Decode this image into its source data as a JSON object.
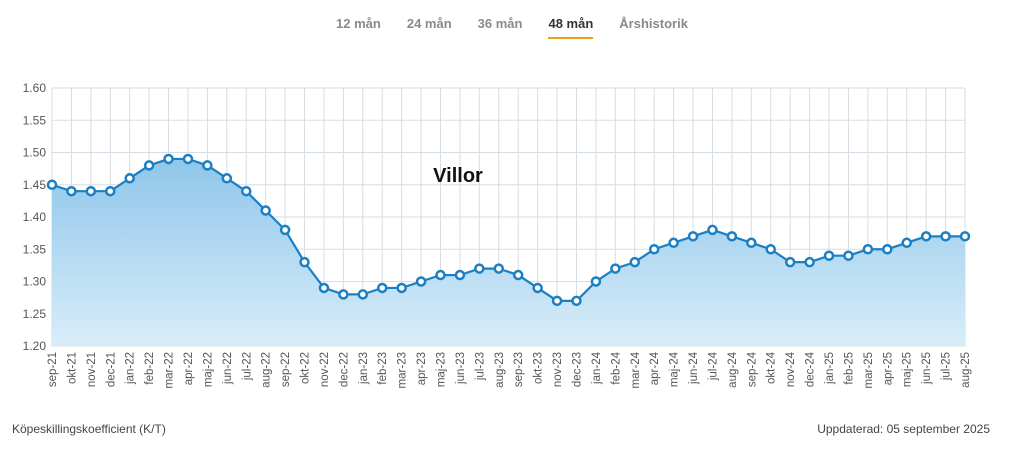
{
  "tabs": [
    {
      "label": "12 mån",
      "active": false
    },
    {
      "label": "24 mån",
      "active": false
    },
    {
      "label": "36 mån",
      "active": false
    },
    {
      "label": "48 mån",
      "active": true
    },
    {
      "label": "Årshistorik",
      "active": false
    }
  ],
  "footer": {
    "left": "Köpeskillingskoefficient (K/T)",
    "right": "Uppdaterad: 05 september 2025"
  },
  "colors": {
    "line": "#1a7fc4",
    "fill_top": "#8ec6ea",
    "fill_bottom": "#d9edf9",
    "grid": "#d6dde3",
    "active_tab_underline": "#e8a317"
  },
  "chart_data": {
    "type": "area",
    "title": "Villor",
    "ylim": [
      1.2,
      1.6
    ],
    "yticks": [
      "1.60",
      "1.55",
      "1.50",
      "1.45",
      "1.40",
      "1.35",
      "1.30",
      "1.25",
      "1.20"
    ],
    "grid": true,
    "categories": [
      "sep-21",
      "okt-21",
      "nov-21",
      "dec-21",
      "jan-22",
      "feb-22",
      "mar-22",
      "apr-22",
      "maj-22",
      "jun-22",
      "jul-22",
      "aug-22",
      "sep-22",
      "okt-22",
      "nov-22",
      "dec-22",
      "jan-23",
      "feb-23",
      "mar-23",
      "apr-23",
      "maj-23",
      "jun-23",
      "jul-23",
      "aug-23",
      "sep-23",
      "okt-23",
      "nov-23",
      "dec-23",
      "jan-24",
      "feb-24",
      "mar-24",
      "apr-24",
      "maj-24",
      "jun-24",
      "jul-24",
      "aug-24",
      "sep-24",
      "okt-24",
      "nov-24",
      "dec-24",
      "jan-25",
      "feb-25",
      "mar-25",
      "apr-25",
      "maj-25",
      "jun-25",
      "jul-25",
      "aug-25"
    ],
    "values": [
      1.45,
      1.44,
      1.44,
      1.44,
      1.46,
      1.48,
      1.49,
      1.49,
      1.48,
      1.46,
      1.44,
      1.41,
      1.38,
      1.33,
      1.29,
      1.28,
      1.28,
      1.29,
      1.29,
      1.3,
      1.31,
      1.31,
      1.32,
      1.32,
      1.31,
      1.29,
      1.27,
      1.27,
      1.3,
      1.32,
      1.33,
      1.35,
      1.36,
      1.37,
      1.38,
      1.37,
      1.36,
      1.35,
      1.33,
      1.33,
      1.34,
      1.34,
      1.35,
      1.35,
      1.36,
      1.37,
      1.37,
      1.37
    ]
  }
}
